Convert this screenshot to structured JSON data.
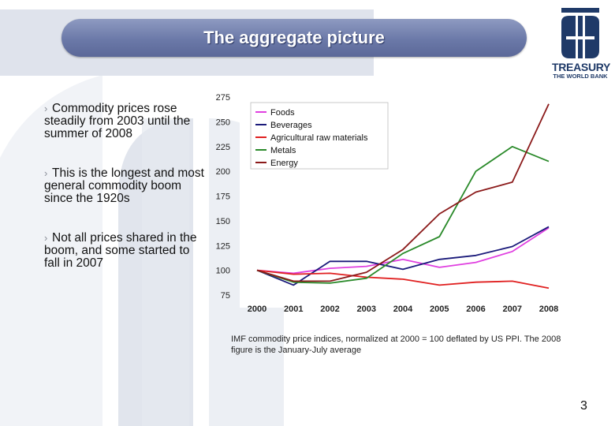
{
  "slide": {
    "title": "The aggregate picture",
    "logo_name": "TREASURY",
    "logo_sub": "THE WORLD BANK",
    "bullets": [
      "Commodity prices rose steadily from 2003 until the summer of 2008",
      "This is the longest and most general commodity boom since the 1920s",
      "Not all prices shared in the boom, and some started to fall in 2007"
    ],
    "caption": "IMF commodity price indices, normalized at 2000 = 100 deflated by US PPI. The 2008 figure is the January-July average",
    "page_number": "3"
  },
  "colors": {
    "title_pill": "#6b79a8",
    "logo": "#1f3a68"
  },
  "chart_data": {
    "type": "line",
    "title": "",
    "xlabel": "",
    "ylabel": "",
    "x": [
      "2000",
      "2001",
      "2002",
      "2003",
      "2004",
      "2005",
      "2006",
      "2007",
      "2008"
    ],
    "yticks": [
      75,
      100,
      125,
      150,
      175,
      200,
      225,
      250,
      275
    ],
    "ylim": [
      75,
      275
    ],
    "grid": false,
    "legend_position": "top-left",
    "series": [
      {
        "name": "Foods",
        "color": "#e040e0",
        "values": [
          100,
          97,
          102,
          104,
          111,
          103,
          108,
          119,
          143
        ]
      },
      {
        "name": "Beverages",
        "color": "#1a1a7a",
        "values": [
          100,
          85,
          109,
          109,
          101,
          111,
          115,
          124,
          144
        ]
      },
      {
        "name": "Agricultural raw materials",
        "color": "#e02020",
        "values": [
          100,
          96,
          97,
          93,
          91,
          85,
          88,
          89,
          82
        ]
      },
      {
        "name": "Metals",
        "color": "#2a8a2a",
        "values": [
          100,
          88,
          87,
          92,
          117,
          134,
          200,
          225,
          210
        ]
      },
      {
        "name": "Energy",
        "color": "#8b1a1a",
        "values": [
          100,
          89,
          89,
          98,
          121,
          157,
          179,
          189,
          268
        ]
      }
    ]
  }
}
